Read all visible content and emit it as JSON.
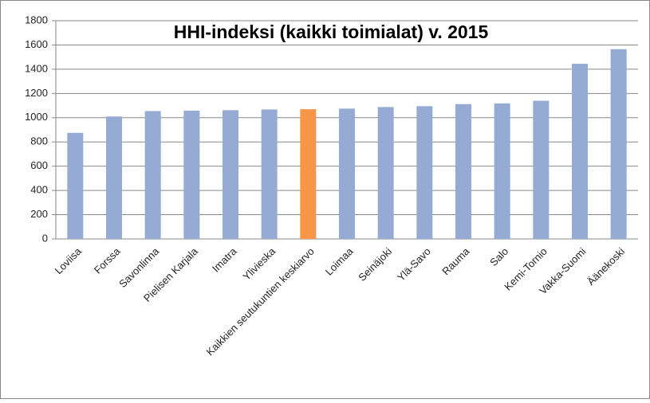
{
  "chart_data": {
    "type": "bar",
    "title": "HHI-indeksi (kaikki toimialat) v. 2015",
    "categories": [
      "Loviisa",
      "Forssa",
      "Savonlinna",
      "Pielisen Karjala",
      "Imatra",
      "Ylivieska",
      "Kaikkien seutukuntien keskiarvo",
      "Loimaa",
      "Seinäjoki",
      "Ylä-Savo",
      "Rauma",
      "Salo",
      "Kemi-Tornio",
      "Vakka-Suomi",
      "Äänekoski"
    ],
    "values": [
      875,
      1010,
      1055,
      1058,
      1062,
      1068,
      1070,
      1075,
      1088,
      1095,
      1112,
      1118,
      1140,
      1445,
      1565
    ],
    "colors": [
      "#95abd3",
      "#95abd3",
      "#95abd3",
      "#95abd3",
      "#95abd3",
      "#95abd3",
      "#f79646",
      "#95abd3",
      "#95abd3",
      "#95abd3",
      "#95abd3",
      "#95abd3",
      "#95abd3",
      "#95abd3",
      "#95abd3"
    ],
    "ylim": [
      0,
      1800
    ],
    "yticks": [
      0,
      200,
      400,
      600,
      800,
      1000,
      1200,
      1400,
      1600,
      1800
    ],
    "grid": true
  }
}
